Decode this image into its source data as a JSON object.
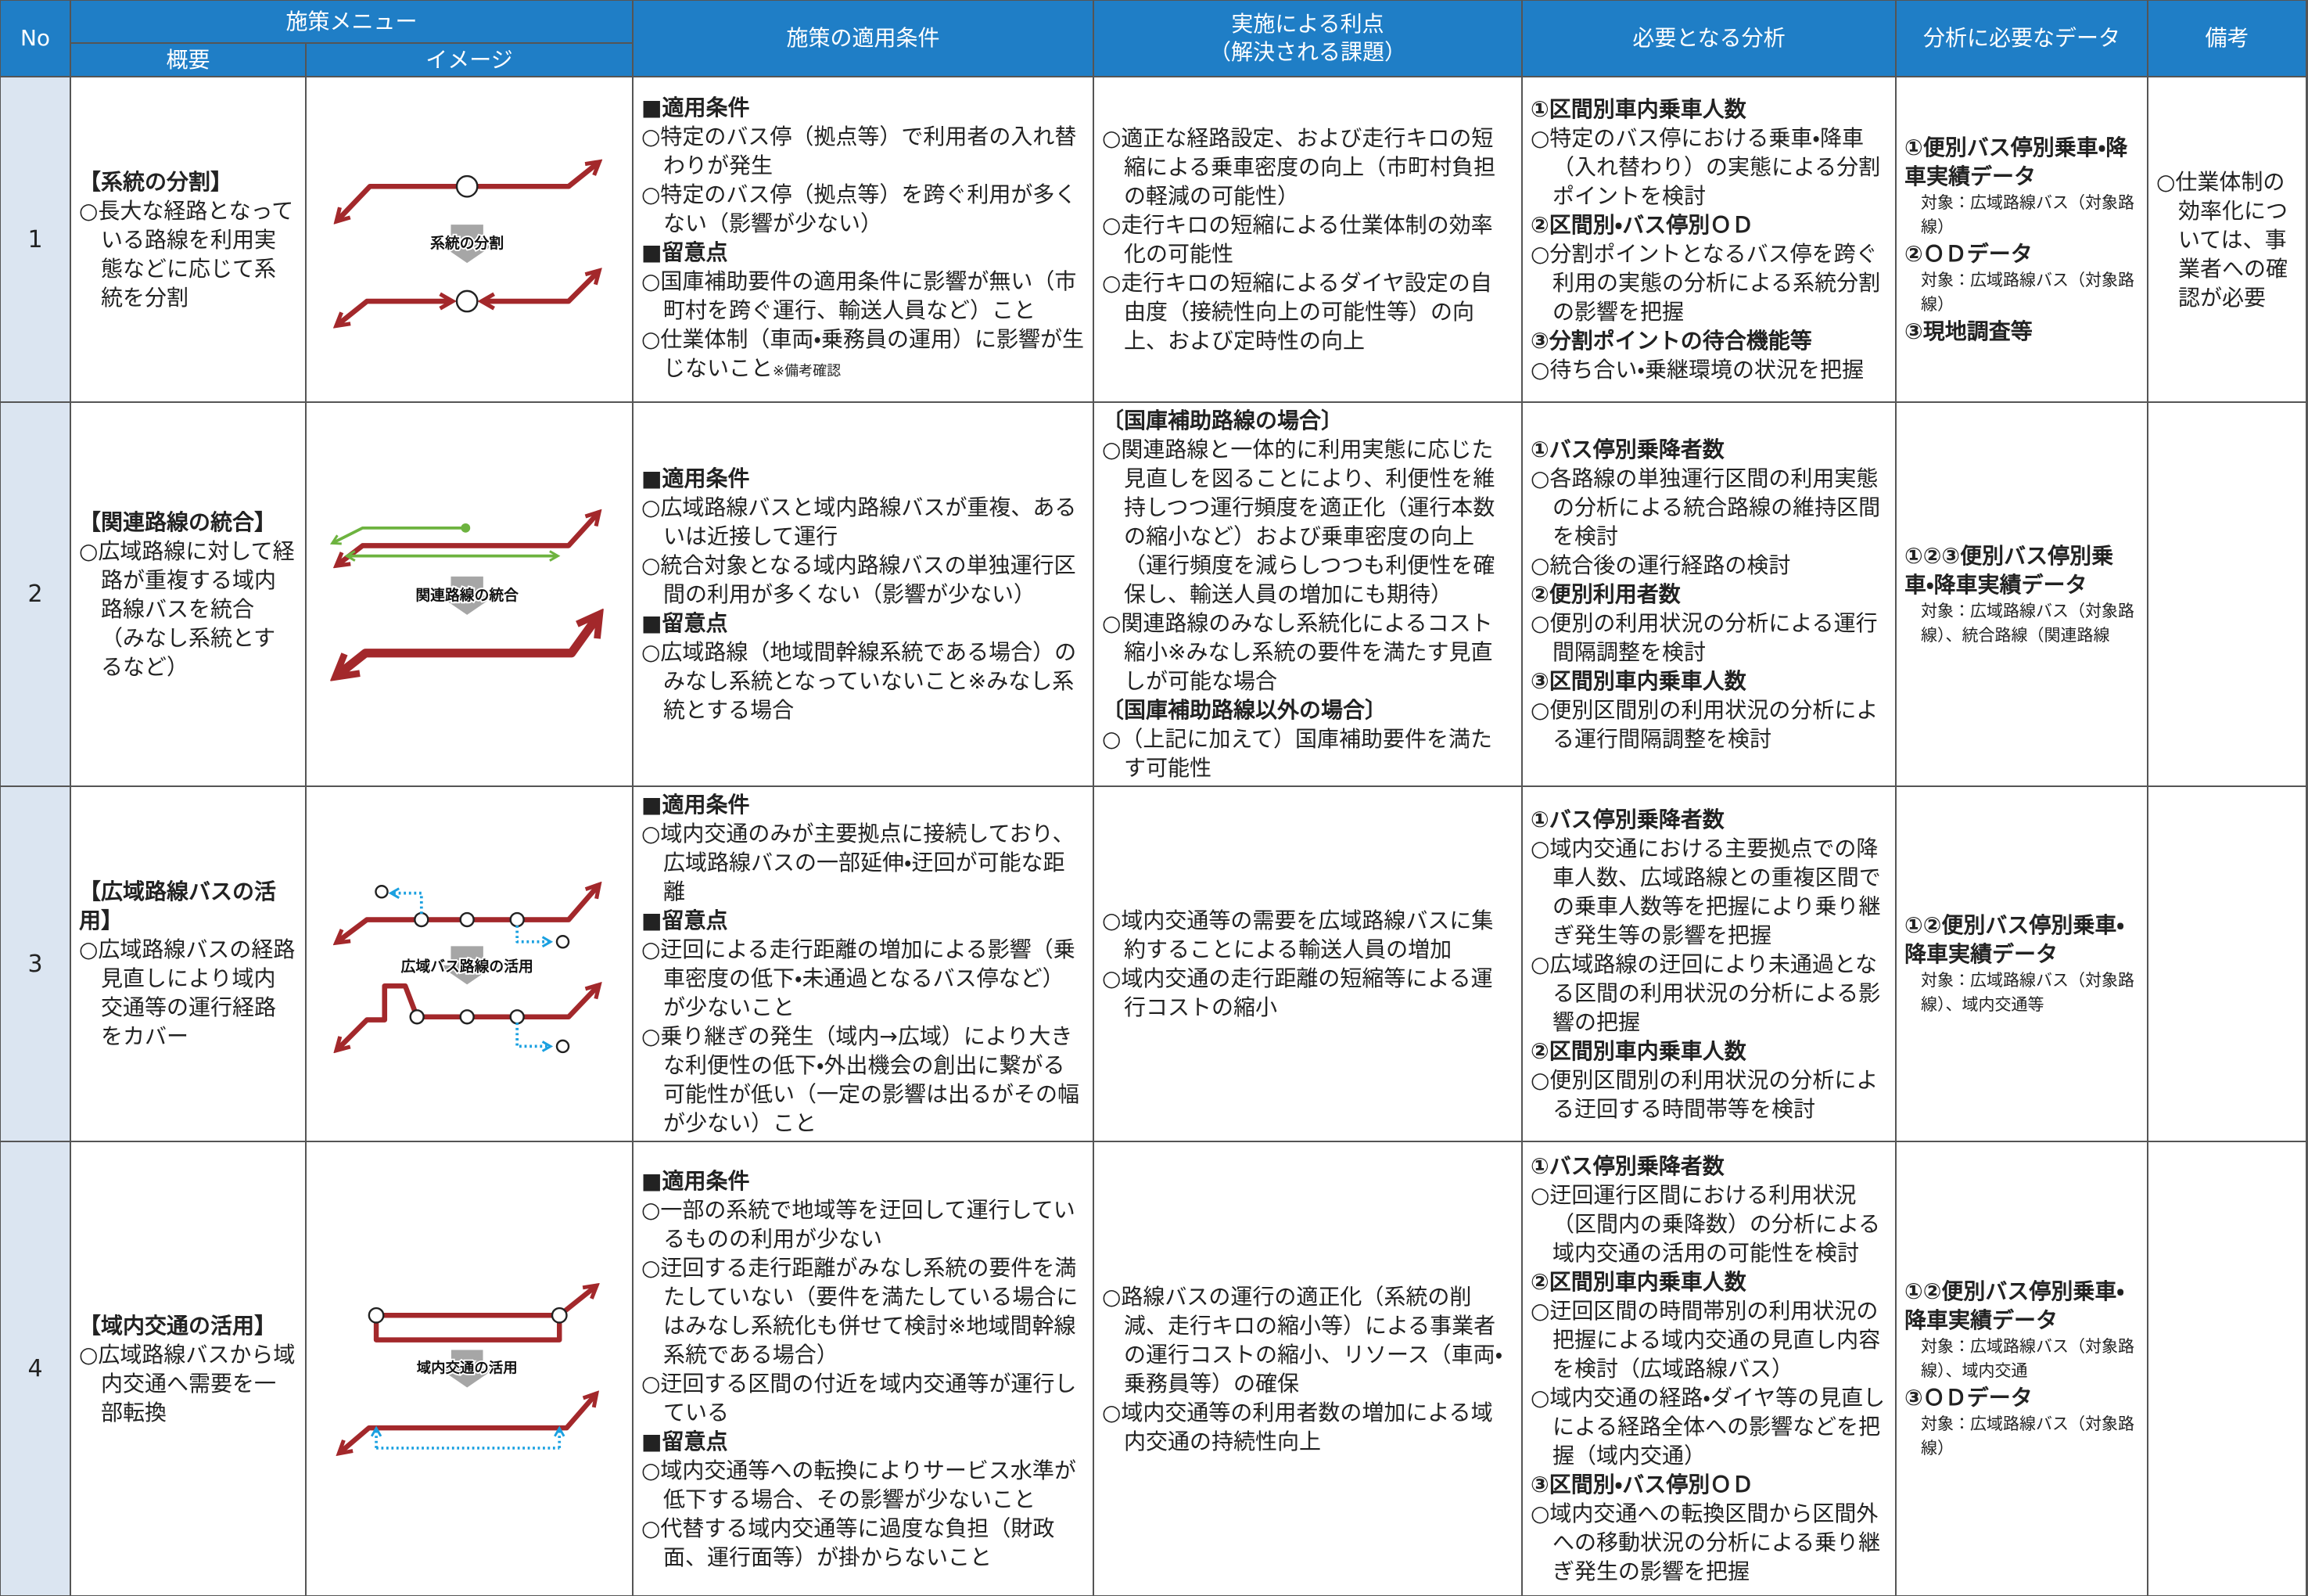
{
  "header": {
    "no": "No",
    "menu": "施策メニュー",
    "summary": "概要",
    "image": "イメージ",
    "conditions": "施策の適用条件",
    "benefits": [
      "実施による利点",
      "（解決される課題）"
    ],
    "analysis": "必要となる分析",
    "data": "分析に必要なデータ",
    "remarks": "備考"
  },
  "rows": [
    {
      "no": "1",
      "summary_title": "【系統の分割】",
      "summary": "○長大な経路となっている路線を利用実態などに応じて系統を分割",
      "image_label": "系統の分割",
      "conditions": [
        {
          "heading": "■適用条件",
          "items": [
            "○特定のバス停（拠点等）で利用者の入れ替わりが発生",
            "○特定のバス停（拠点等）を跨ぐ利用が多くない（影響が少ない）"
          ]
        },
        {
          "heading": "■留意点",
          "items": [
            "○国庫補助要件の適用条件に影響が無い（市町村を跨ぐ運行、輸送人員など）こと",
            "○仕業体制（車両・乗務員の運用）に影響が生じないこと"
          ]
        }
      ],
      "conditions_note": "※備考確認",
      "benefits": [
        {
          "items": [
            "○適正な経路設定、および走行キロの短縮による乗車密度の向上（市町村負担の軽減の可能性）",
            "○走行キロの短縮による仕業体制の効率化の可能性",
            "○走行キロの短縮によるダイヤ設定の自由度（接続性向上の可能性等）の向上、および定時性の向上"
          ]
        }
      ],
      "analysis": [
        {
          "heading": "①区間別車内乗車人数",
          "items": [
            "○特定のバス停における乗車・降車（入れ替わり）の実態による分割ポイントを検討"
          ]
        },
        {
          "heading": "②区間別・バス停別ＯＤ",
          "items": [
            "○分割ポイントとなるバス停を跨ぐ利用の実態の分析による系統分割の影響を把握"
          ]
        },
        {
          "heading": "③分割ポイントの待合機能等",
          "items": [
            "○待ち合い・乗継環境の状況を把握"
          ]
        }
      ],
      "data": [
        {
          "heading": "①便別バス停別乗車・降車実績データ",
          "items": [
            "対象：広域路線バス（対象路線）"
          ]
        },
        {
          "heading": "②ＯＤデータ",
          "items": [
            "対象：広域路線バス（対象路線）"
          ]
        },
        {
          "heading": "③現地調査等"
        }
      ],
      "remarks": "○仕業体制の効率化については、事業者への確認が必要"
    },
    {
      "no": "2",
      "summary_title": "【関連路線の統合】",
      "summary": "○広域路線に対して経路が重複する域内路線バスを統合（みなし系統とするなど）",
      "image_label": "関連路線の統合",
      "conditions": [
        {
          "heading": "■適用条件",
          "items": [
            "○広域路線バスと域内路線バスが重複、あるいは近接して運行",
            "○統合対象となる域内路線バスの単独運行区間の利用が多くない（影響が少ない）"
          ]
        },
        {
          "heading": "■留意点",
          "items": [
            "○広域路線（地域間幹線系統である場合）のみなし系統となっていないこと※みなし系統とする場合"
          ]
        }
      ],
      "benefits": [
        {
          "heading": "〔国庫補助路線の場合〕",
          "items": [
            "○関連路線と一体的に利用実態に応じた見直しを図ることにより、利便性を維持しつつ運行頻度を適正化（運行本数の縮小など）および乗車密度の向上（運行頻度を減らしつつも利便性を確保し、輸送人員の増加にも期待）",
            "○関連路線のみなし系統化によるコスト縮小※みなし系統の要件を満たす見直しが可能な場合"
          ]
        },
        {
          "heading": "〔国庫補助路線以外の場合〕",
          "items": [
            "○（上記に加えて）国庫補助要件を満たす可能性"
          ]
        }
      ],
      "analysis": [
        {
          "heading": "①バス停別乗降者数",
          "items": [
            "○各路線の単独運行区間の利用実態の分析による統合路線の維持区間を検討",
            "○統合後の運行経路の検討"
          ]
        },
        {
          "heading": "②便別利用者数",
          "items": [
            "○便別の利用状況の分析による運行間隔調整を検討"
          ]
        },
        {
          "heading": "③区間別車内乗車人数",
          "items": [
            "○便別区間別の利用状況の分析による運行間隔調整を検討"
          ]
        }
      ],
      "data": [
        {
          "heading": "①②③便別バス停別乗車・降車実績データ",
          "items": [
            "対象：広域路線バス（対象路線）、統合路線（関連路線"
          ]
        }
      ]
    },
    {
      "no": "3",
      "summary_title": "【広域路線バスの活用】",
      "summary": "○広域路線バスの経路見直しにより域内交通等の運行経路をカバー",
      "image_label": "広域バス路線の活用",
      "conditions": [
        {
          "heading": "■適用条件",
          "items": [
            "○域内交通のみが主要拠点に接続しており、広域路線バスの一部延伸・迂回が可能な距離"
          ]
        },
        {
          "heading": "■留意点",
          "items": [
            "○迂回による走行距離の増加による影響（乗車密度の低下・未通過となるバス停など）が少ないこと",
            "○乗り継ぎの発生（域内→広域）により大きな利便性の低下・外出機会の創出に繋がる可能性が低い（一定の影響は出るがその幅が少ない）こと"
          ]
        }
      ],
      "benefits": [
        {
          "items": [
            "○域内交通等の需要を広域路線バスに集約することによる輸送人員の増加",
            "○域内交通の走行距離の短縮等による運行コストの縮小"
          ]
        }
      ],
      "analysis": [
        {
          "heading": "①バス停別乗降者数",
          "items": [
            "○域内交通における主要拠点での降車人数、広域路線との重複区間での乗車人数等を把握により乗り継ぎ発生等の影響を把握",
            "○広域路線の迂回により未通過となる区間の利用状況の分析による影響の把握"
          ]
        },
        {
          "heading": "②区間別車内乗車人数",
          "items": [
            "○便別区間別の利用状況の分析による迂回する時間帯等を検討"
          ]
        }
      ],
      "data": [
        {
          "heading": "①②便別バス停別乗車・降車実績データ",
          "items": [
            "対象：広域路線バス（対象路線）、域内交通等"
          ]
        }
      ]
    },
    {
      "no": "4",
      "summary_title": "【域内交通の活用】",
      "summary": "○広域路線バスから域内交通へ需要を一部転換",
      "image_label": "域内交通の活用",
      "conditions": [
        {
          "heading": "■適用条件",
          "items": [
            "○一部の系統で地域等を迂回して運行しているものの利用が少ない",
            "○迂回する走行距離がみなし系統の要件を満たしていない（要件を満たしている場合にはみなし系統化も併せて検討※地域間幹線系統である場合）",
            "○迂回する区間の付近を域内交通等が運行している"
          ]
        },
        {
          "heading": "■留意点",
          "items": [
            "○域内交通等への転換によりサービス水準が低下する場合、その影響が少ないこと",
            "○代替する域内交通等に過度な負担（財政面、運行面等）が掛からないこと"
          ]
        }
      ],
      "benefits": [
        {
          "items": [
            "○路線バスの運行の適正化（系統の削減、走行キロの縮小等）による事業者の運行コストの縮小、リソース（車両・乗務員等）の確保",
            "○域内交通等の利用者数の増加による域内交通の持続性向上"
          ]
        }
      ],
      "analysis": [
        {
          "heading": "①バス停別乗降者数",
          "items": [
            "○迂回運行区間における利用状況（区間内の乗降数）の分析による域内交通の活用の可能性を検討"
          ]
        },
        {
          "heading": "②区間別車内乗車人数",
          "items": [
            "○迂回区間の時間帯別の利用状況の把握による域内交通の見直し内容を検討（広域路線バス）",
            "○域内交通の経路・ダイヤ等の見直しによる経路全体への影響などを把握（域内交通）"
          ]
        },
        {
          "heading": "③区間別・バス停別ＯＤ",
          "items": [
            "○域内交通への転換区間から区間外への移動状況の分析による乗り継ぎ発生の影響を把握"
          ]
        }
      ],
      "data": [
        {
          "heading": "①②便別バス停別乗車・降車実績データ",
          "items": [
            "対象：広域路線バス（対象路線）、域内交通"
          ]
        },
        {
          "heading": "③ＯＤデータ",
          "items": [
            "対象：広域路線バス（対象路線）"
          ]
        }
      ]
    }
  ]
}
